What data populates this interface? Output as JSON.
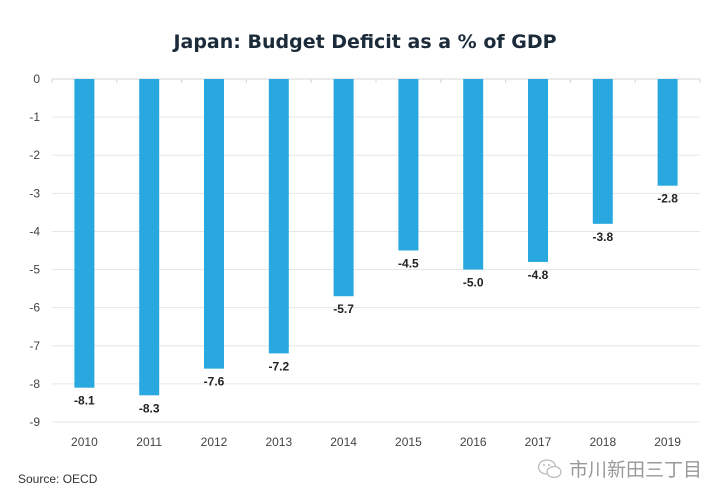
{
  "chart_data": {
    "type": "bar",
    "title": "Japan: Budget Deficit as a % of GDP",
    "xlabel": "",
    "ylabel": "",
    "categories": [
      "2010",
      "2011",
      "2012",
      "2013",
      "2014",
      "2015",
      "2016",
      "2017",
      "2018",
      "2019"
    ],
    "values": [
      -8.1,
      -8.3,
      -7.6,
      -7.2,
      -5.7,
      -4.5,
      -5.0,
      -4.8,
      -3.8,
      -2.8
    ],
    "data_labels": [
      "-8.1",
      "-8.3",
      "-7.6",
      "-7.2",
      "-5.7",
      "-4.5",
      "-5.0",
      "-4.8",
      "-3.8",
      "-2.8"
    ],
    "ylim": [
      -9,
      0
    ],
    "yticks": [
      "0",
      "-1",
      "-2",
      "-3",
      "-4",
      "-5",
      "-6",
      "-7",
      "-8",
      "-9"
    ],
    "grid": true,
    "bar_color": "#29a8e0"
  },
  "source": "Source: OECD",
  "watermark": {
    "icon": "wechat-icon",
    "text": "市川新田三丁目"
  }
}
